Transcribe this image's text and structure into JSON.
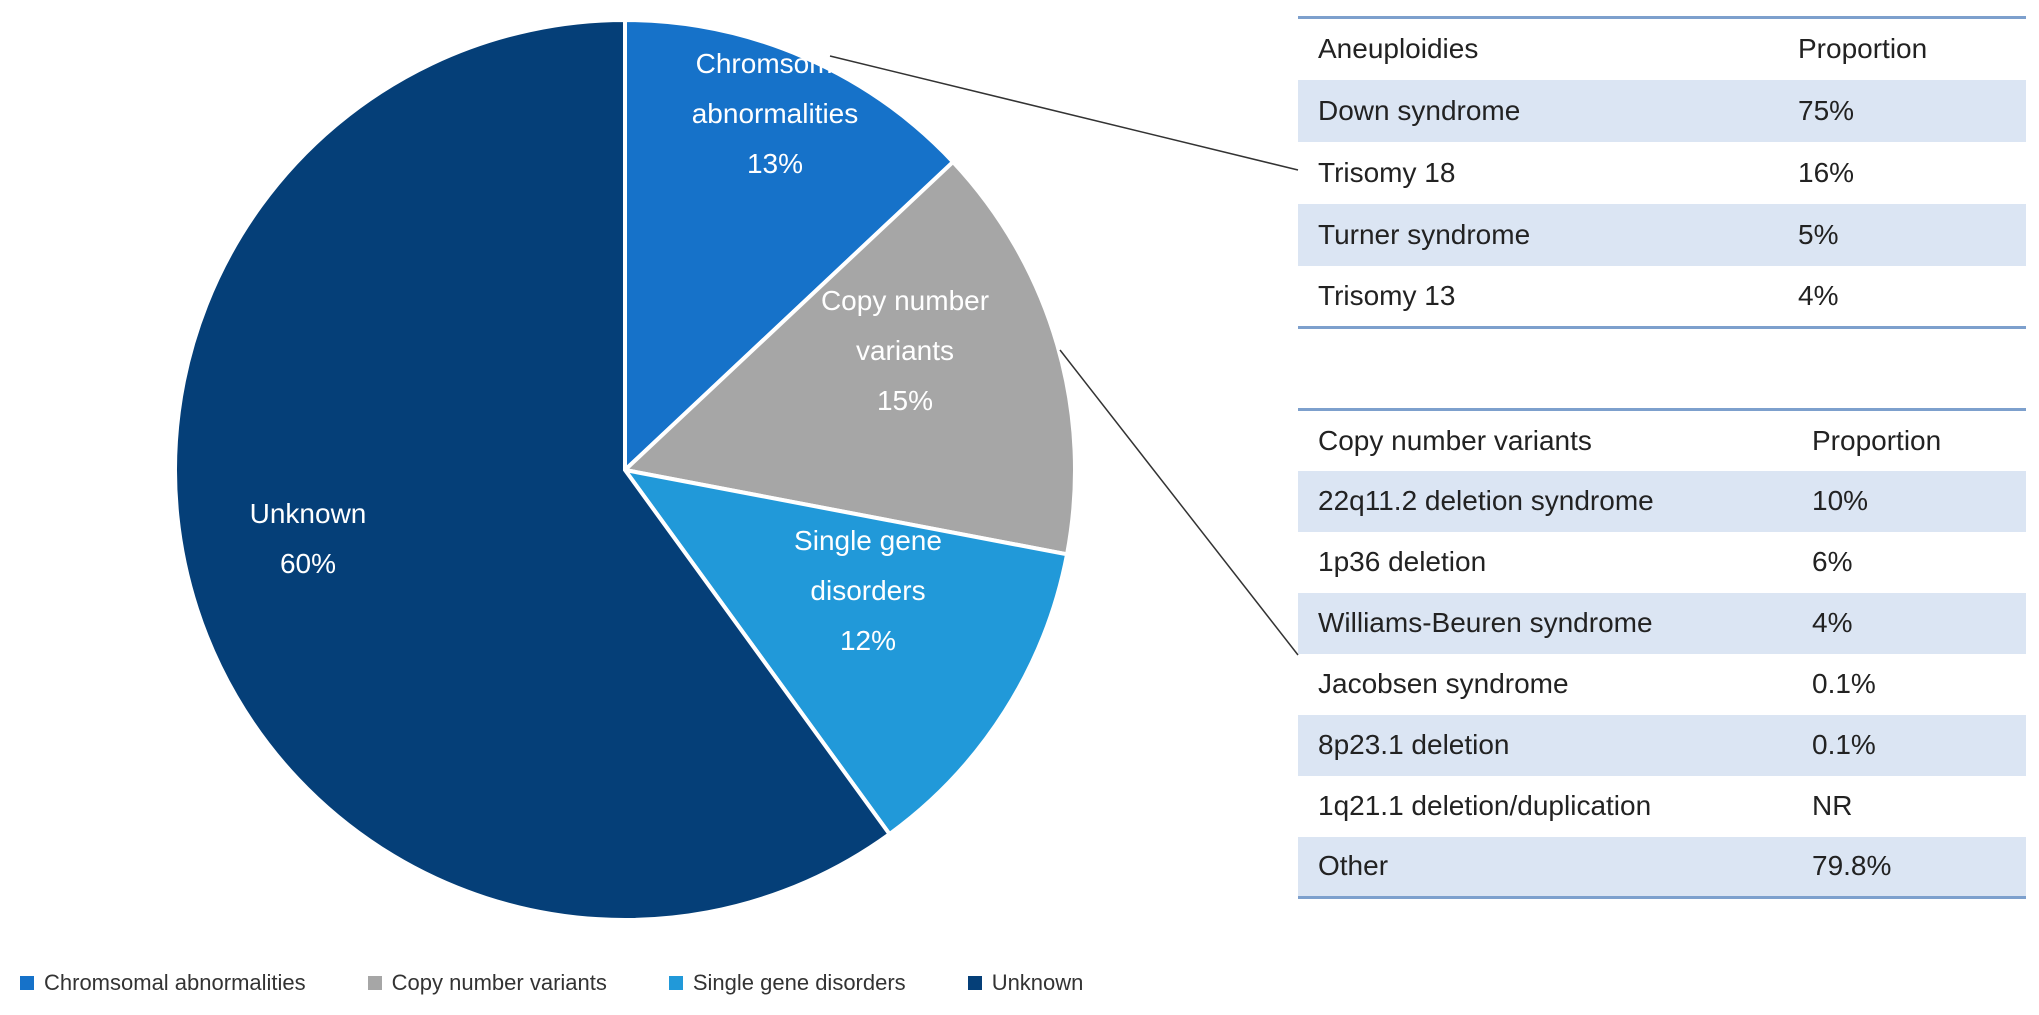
{
  "chart_data": {
    "type": "pie",
    "slices": [
      {
        "name": "Chromsomal abnormalities",
        "value": 13,
        "label_lines": [
          "Chromsomal",
          "abnormalities",
          "13%"
        ],
        "color": "#1672c9"
      },
      {
        "name": "Copy number variants",
        "value": 15,
        "label_lines": [
          "Copy number",
          "variants",
          "15%"
        ],
        "color": "#a6a6a6"
      },
      {
        "name": "Single gene disorders",
        "value": 12,
        "label_lines": [
          "Single gene",
          "disorders",
          "12%"
        ],
        "color": "#2199d9"
      },
      {
        "name": "Unknown",
        "value": 60,
        "label_lines": [
          "Unknown",
          "60%"
        ],
        "color": "#053f78"
      }
    ],
    "start": "12 o'clock",
    "direction": "clockwise",
    "legend": {
      "placement": "bottom-left"
    }
  },
  "tables": {
    "aneuploidy": {
      "headers": [
        "Aneuploidies",
        "Proportion"
      ],
      "rows": [
        [
          "Down syndrome",
          "75%"
        ],
        [
          "Trisomy 18",
          "16%"
        ],
        [
          "Turner syndrome",
          "5%"
        ],
        [
          "Trisomy 13",
          "4%"
        ]
      ]
    },
    "cnv": {
      "headers": [
        "Copy number variants",
        "Proportion"
      ],
      "rows": [
        [
          "22q11.2 deletion syndrome",
          "10%"
        ],
        [
          "1p36 deletion",
          "6%"
        ],
        [
          "Williams-Beuren syndrome",
          "4%"
        ],
        [
          "Jacobsen syndrome",
          "0.1%"
        ],
        [
          "8p23.1 deletion",
          "0.1%"
        ],
        [
          "1q21.1 deletion/duplication",
          "NR"
        ],
        [
          "Other",
          "79.8%"
        ]
      ]
    }
  },
  "colors": {
    "table_band": "#dbe5f3",
    "table_rule": "#7da0cd",
    "callout_line": "#333333"
  }
}
